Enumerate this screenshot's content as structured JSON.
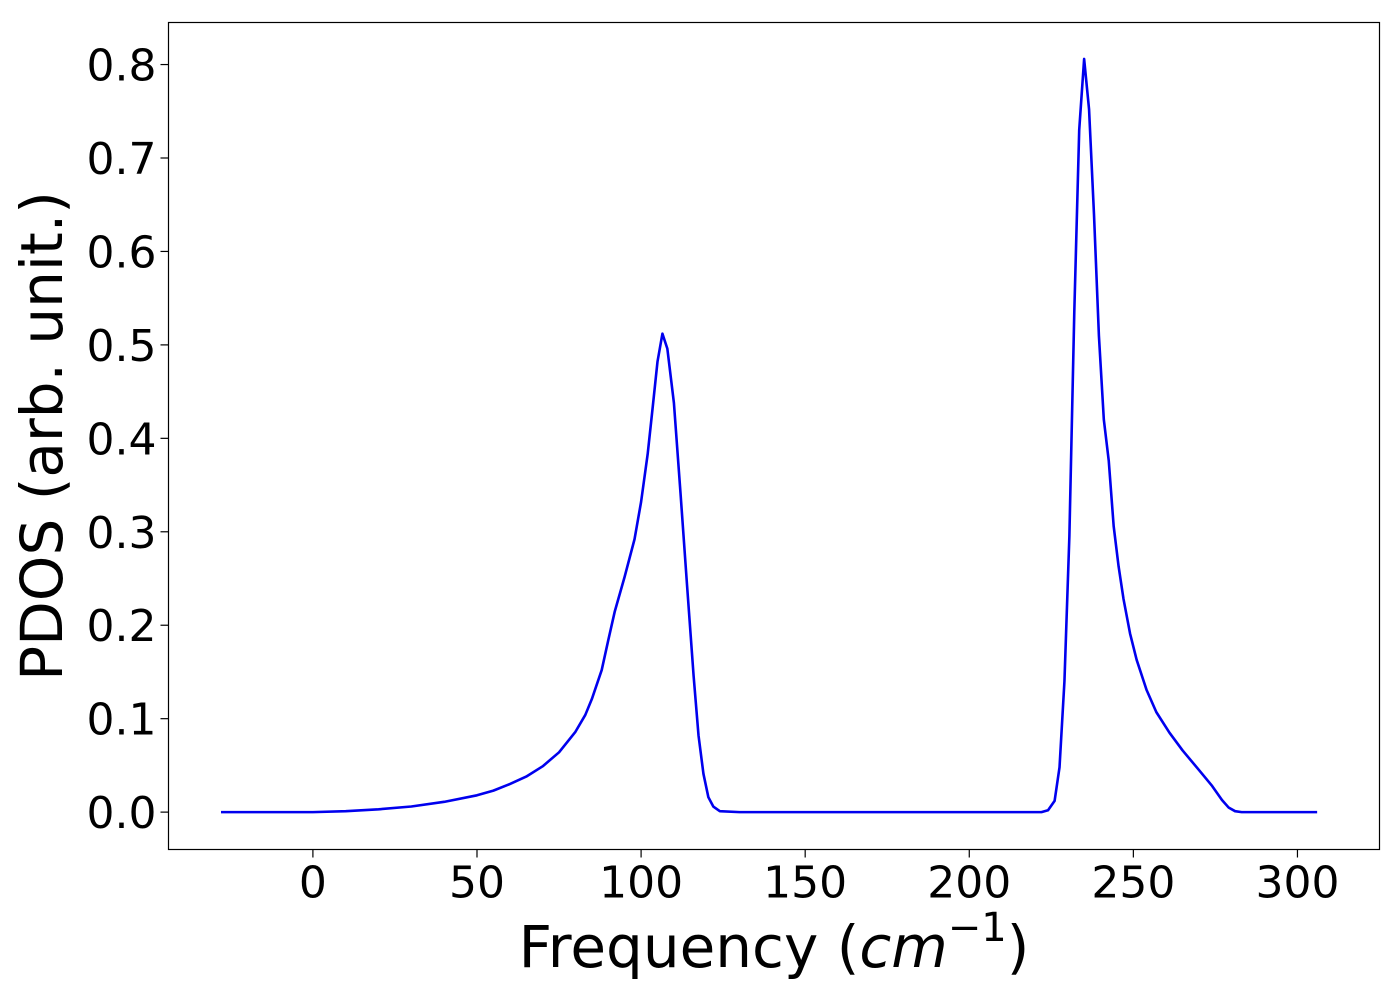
{
  "chart_data": {
    "type": "line",
    "title": "",
    "xlabel_main": "Frequency (",
    "xlabel_var": "cm",
    "xlabel_exp": "−1",
    "xlabel_close": ")",
    "ylabel": "PDOS (arb. unit.)",
    "xlim": [
      -44,
      325
    ],
    "ylim": [
      -0.04,
      0.845
    ],
    "xticks": [
      0,
      50,
      100,
      150,
      200,
      250,
      300
    ],
    "yticks": [
      0.0,
      0.1,
      0.2,
      0.3,
      0.4,
      0.5,
      0.6,
      0.7,
      0.8
    ],
    "ytick_labels": [
      "0.0",
      "0.1",
      "0.2",
      "0.3",
      "0.4",
      "0.5",
      "0.6",
      "0.7",
      "0.8"
    ],
    "grid": false,
    "series": [
      {
        "color": "#0000ee",
        "x": [
          -28,
          0,
          10,
          20,
          30,
          40,
          50,
          55,
          60,
          65,
          70,
          75,
          80,
          83,
          85,
          88,
          90,
          92,
          95,
          98,
          100,
          102,
          103.5,
          105,
          106.5,
          108,
          110,
          112,
          114,
          116,
          117.5,
          119,
          120.5,
          122,
          124,
          130,
          150,
          200,
          222,
          224,
          226,
          227.5,
          229,
          230.5,
          232,
          233.5,
          235,
          236.5,
          238,
          239.5,
          241,
          242.5,
          244,
          245.5,
          247,
          249,
          251,
          254,
          257,
          261,
          265,
          270,
          274,
          277,
          279,
          281,
          283,
          285,
          290,
          306
        ],
        "y": [
          0,
          0,
          0.001,
          0.003,
          0.006,
          0.011,
          0.018,
          0.023,
          0.03,
          0.038,
          0.049,
          0.064,
          0.086,
          0.104,
          0.121,
          0.152,
          0.184,
          0.215,
          0.252,
          0.292,
          0.332,
          0.383,
          0.432,
          0.482,
          0.512,
          0.496,
          0.438,
          0.342,
          0.243,
          0.146,
          0.082,
          0.041,
          0.016,
          0.006,
          0.001,
          0,
          0,
          0,
          0,
          0.002,
          0.012,
          0.048,
          0.14,
          0.295,
          0.535,
          0.73,
          0.806,
          0.752,
          0.64,
          0.51,
          0.42,
          0.376,
          0.306,
          0.263,
          0.228,
          0.191,
          0.163,
          0.131,
          0.107,
          0.085,
          0.066,
          0.045,
          0.028,
          0.013,
          0.005,
          0.001,
          0,
          0,
          0,
          0
        ]
      }
    ]
  }
}
